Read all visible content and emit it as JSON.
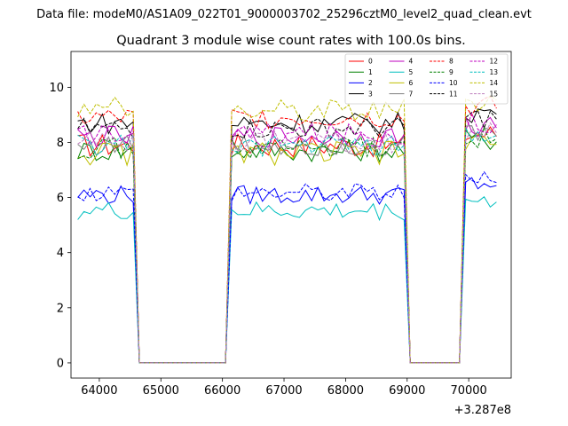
{
  "figure": {
    "suptitle": "Data file: modeM0/AS1A09_022T01_9000003702_25296cztM0_level2_quad_clean.evt",
    "title": "Quadrant 3 module wise count rates with 100.0s bins.",
    "x_offset_label": "+3.287e8"
  },
  "chart_data": {
    "type": "line",
    "title": "Quadrant 3 module wise count rates with 100.0s bins.",
    "xlabel": "",
    "ylabel": "",
    "x_offset": 328700000,
    "xlim": [
      63540,
      70690
    ],
    "ylim": [
      -0.55,
      11.3
    ],
    "xticks": [
      64000,
      65000,
      66000,
      67000,
      68000,
      69000,
      70000
    ],
    "xtick_labels": [
      "64000",
      "65000",
      "66000",
      "67000",
      "68000",
      "69000",
      "70000"
    ],
    "yticks": [
      0,
      2,
      4,
      6,
      8,
      10
    ],
    "ytick_labels": [
      "0",
      "2",
      "4",
      "6",
      "8",
      "10"
    ],
    "grid": false,
    "legend_position": "upper-right",
    "legend_columns": 4,
    "segments": [
      {
        "start": 63650,
        "end": 64600
      },
      {
        "start": 64650,
        "end": 66050
      },
      {
        "start": 66100,
        "end": 69000
      },
      {
        "start": 69050,
        "end": 69850
      },
      {
        "start": 69900,
        "end": 70500
      }
    ],
    "series": [
      {
        "name": "0",
        "color": "#ff0000",
        "dash": "solid",
        "base": 7.9,
        "variation": 0.45
      },
      {
        "name": "1",
        "color": "#008000",
        "dash": "solid",
        "base": 7.7,
        "variation": 0.4
      },
      {
        "name": "2",
        "color": "#0000ff",
        "dash": "solid",
        "base": 6.1,
        "variation": 0.35
      },
      {
        "name": "3",
        "color": "#000000",
        "dash": "solid",
        "base": 8.7,
        "variation": 0.4
      },
      {
        "name": "4",
        "color": "#bf00bf",
        "dash": "solid",
        "base": 8.2,
        "variation": 0.4
      },
      {
        "name": "5",
        "color": "#00bfbf",
        "dash": "solid",
        "base": 5.5,
        "variation": 0.35
      },
      {
        "name": "6",
        "color": "#bfbf00",
        "dash": "solid",
        "base": 7.6,
        "variation": 0.45
      },
      {
        "name": "7",
        "color": "#808080",
        "dash": "solid",
        "base": 7.9,
        "variation": 0.4
      },
      {
        "name": "8",
        "color": "#ff0000",
        "dash": "dashed",
        "base": 8.9,
        "variation": 0.4
      },
      {
        "name": "9",
        "color": "#008000",
        "dash": "dashed",
        "base": 7.8,
        "variation": 0.4
      },
      {
        "name": "10",
        "color": "#0000ff",
        "dash": "dashed",
        "base": 6.2,
        "variation": 0.35
      },
      {
        "name": "11",
        "color": "#000000",
        "dash": "dashed",
        "base": 8.5,
        "variation": 0.4
      },
      {
        "name": "12",
        "color": "#bf00bf",
        "dash": "dashed",
        "base": 8.3,
        "variation": 0.4
      },
      {
        "name": "13",
        "color": "#00bfbf",
        "dash": "dashed",
        "base": 7.9,
        "variation": 0.4
      },
      {
        "name": "14",
        "color": "#bfbf00",
        "dash": "dashed",
        "base": 9.2,
        "variation": 0.45
      },
      {
        "name": "15",
        "color": "#bf80bf",
        "dash": "dashed",
        "base": 8.0,
        "variation": 0.4
      }
    ]
  }
}
